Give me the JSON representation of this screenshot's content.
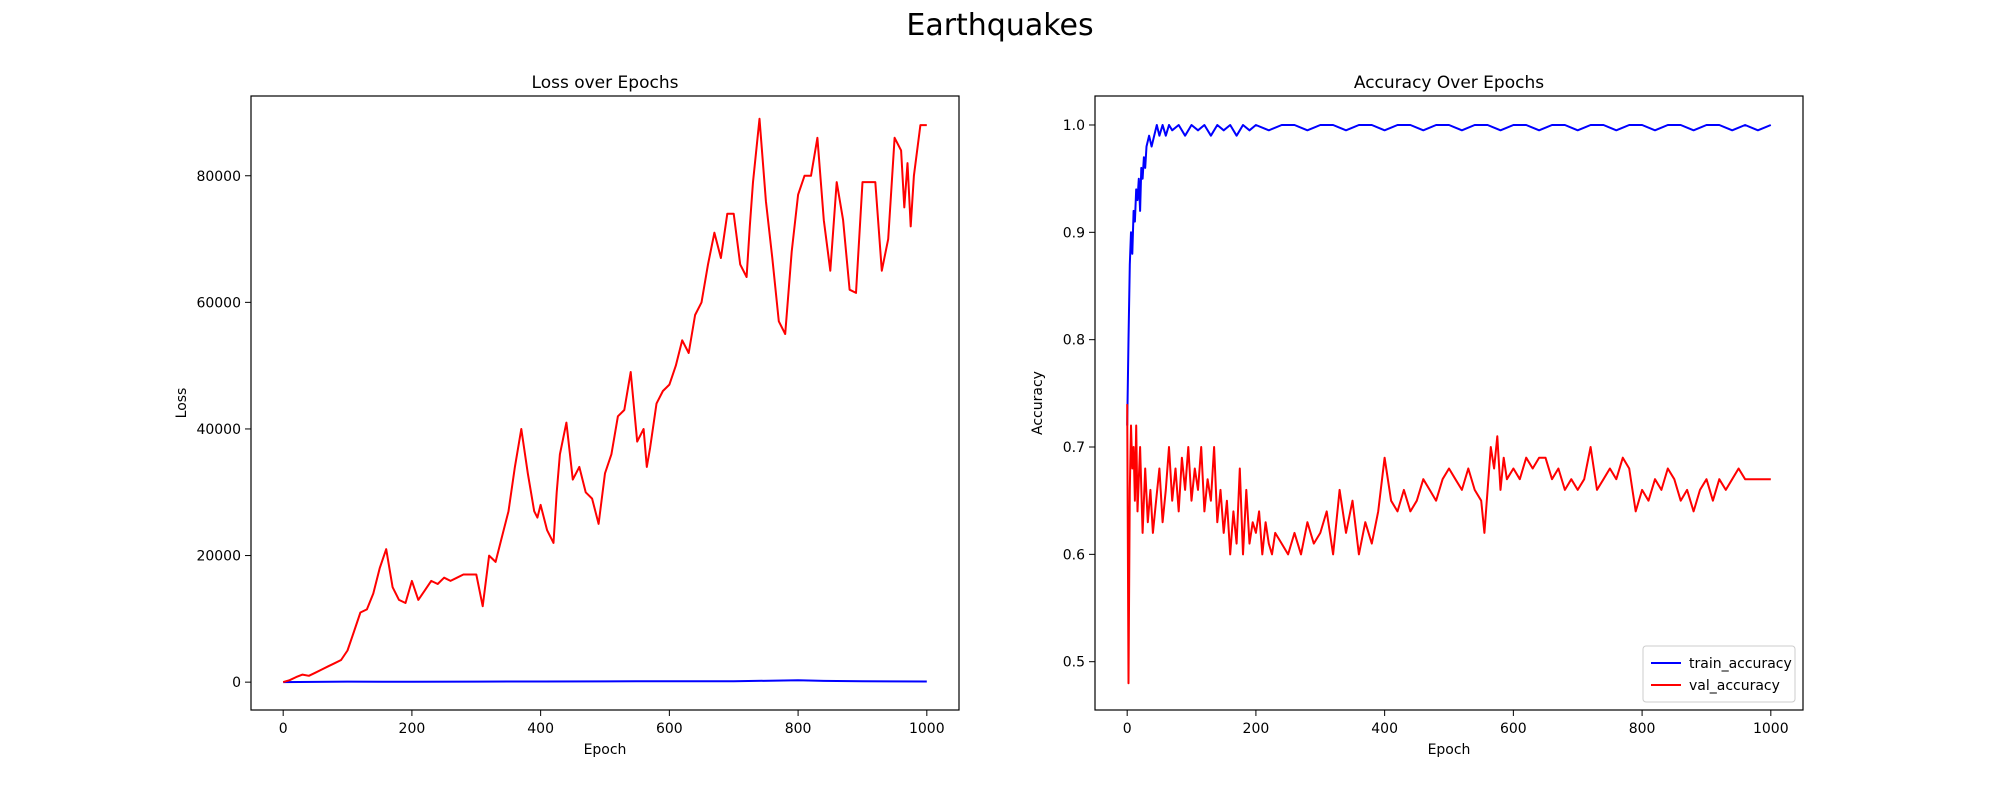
{
  "figure": {
    "suptitle": "Earthquakes"
  },
  "chart_data": [
    {
      "type": "line",
      "title": "Loss over Epochs",
      "xlabel": "Epoch",
      "ylabel": "Loss",
      "xlim": [
        -50,
        1050
      ],
      "ylim": [
        -4400,
        92600
      ],
      "xticks": [
        0,
        200,
        400,
        600,
        800,
        1000
      ],
      "yticks": [
        0,
        20000,
        40000,
        60000,
        80000
      ],
      "legend": null,
      "grid": false,
      "series": [
        {
          "color": "#0000ff",
          "x": [
            0,
            100,
            200,
            300,
            400,
            500,
            600,
            700,
            800,
            840,
            900,
            1000
          ],
          "y": [
            0,
            80,
            60,
            90,
            100,
            120,
            150,
            130,
            300,
            200,
            150,
            100
          ]
        },
        {
          "color": "#ff0000",
          "x": [
            0,
            10,
            20,
            30,
            40,
            50,
            60,
            70,
            80,
            90,
            100,
            110,
            120,
            130,
            140,
            150,
            160,
            170,
            180,
            190,
            200,
            210,
            220,
            230,
            240,
            250,
            260,
            270,
            280,
            290,
            300,
            310,
            320,
            330,
            340,
            350,
            360,
            370,
            380,
            390,
            395,
            400,
            410,
            420,
            425,
            430,
            440,
            450,
            460,
            470,
            480,
            490,
            500,
            510,
            520,
            530,
            540,
            550,
            560,
            565,
            570,
            580,
            590,
            600,
            610,
            620,
            630,
            640,
            650,
            660,
            670,
            680,
            690,
            700,
            710,
            720,
            725,
            730,
            740,
            750,
            760,
            770,
            780,
            790,
            800,
            810,
            820,
            830,
            840,
            850,
            860,
            870,
            880,
            890,
            900,
            910,
            920,
            930,
            940,
            950,
            960,
            965,
            970,
            975,
            980,
            990,
            1000
          ],
          "y": [
            0,
            300,
            800,
            1200,
            1000,
            1500,
            2000,
            2500,
            3000,
            3500,
            5000,
            8000,
            11000,
            11500,
            14000,
            18000,
            21000,
            15000,
            13000,
            12500,
            16000,
            13000,
            14500,
            16000,
            15500,
            16500,
            16000,
            16500,
            17000,
            17000,
            17000,
            12000,
            20000,
            19000,
            23000,
            27000,
            34000,
            40000,
            33000,
            27000,
            26000,
            28000,
            24000,
            22000,
            30000,
            36000,
            41000,
            32000,
            34000,
            30000,
            29000,
            25000,
            33000,
            36000,
            42000,
            43000,
            49000,
            38000,
            40000,
            34000,
            37000,
            44000,
            46000,
            47000,
            50000,
            54000,
            52000,
            58000,
            60000,
            66000,
            71000,
            67000,
            74000,
            74000,
            66000,
            64000,
            72000,
            79000,
            89000,
            76000,
            67000,
            57000,
            55000,
            68000,
            77000,
            80000,
            80000,
            86000,
            73000,
            65000,
            79000,
            73000,
            62000,
            61500,
            79000,
            79000,
            79000,
            65000,
            70000,
            86000,
            84000,
            75000,
            82000,
            72000,
            80000,
            88000,
            88000
          ]
        }
      ]
    },
    {
      "type": "line",
      "title": "Accuracy Over Epochs",
      "xlabel": "Epoch",
      "ylabel": "Accuracy",
      "xlim": [
        -50,
        1050
      ],
      "ylim": [
        0.455,
        1.027
      ],
      "xticks": [
        0,
        200,
        400,
        600,
        800,
        1000
      ],
      "yticks": [
        0.5,
        0.6,
        0.7,
        0.8,
        0.9,
        1.0
      ],
      "legend": "lower-right",
      "grid": false,
      "series": [
        {
          "name": "train_accuracy",
          "color": "#0000ff",
          "x": [
            0,
            2,
            4,
            6,
            8,
            10,
            12,
            14,
            16,
            18,
            20,
            22,
            24,
            26,
            28,
            30,
            34,
            38,
            42,
            46,
            50,
            55,
            60,
            65,
            70,
            80,
            90,
            100,
            110,
            120,
            130,
            140,
            150,
            160,
            170,
            180,
            190,
            200,
            220,
            240,
            260,
            280,
            300,
            320,
            340,
            360,
            380,
            400,
            420,
            440,
            460,
            480,
            500,
            520,
            540,
            560,
            580,
            600,
            620,
            640,
            660,
            680,
            700,
            720,
            740,
            760,
            780,
            800,
            820,
            840,
            860,
            880,
            900,
            920,
            940,
            960,
            980,
            1000
          ],
          "y": [
            0.72,
            0.8,
            0.87,
            0.9,
            0.88,
            0.92,
            0.91,
            0.94,
            0.93,
            0.95,
            0.92,
            0.96,
            0.95,
            0.97,
            0.96,
            0.98,
            0.99,
            0.98,
            0.99,
            1.0,
            0.99,
            1.0,
            0.99,
            1.0,
            0.995,
            1.0,
            0.99,
            1.0,
            0.995,
            1.0,
            0.99,
            1.0,
            0.995,
            1.0,
            0.99,
            1.0,
            0.995,
            1.0,
            0.995,
            1.0,
            1.0,
            0.995,
            1.0,
            1.0,
            0.995,
            1.0,
            1.0,
            0.995,
            1.0,
            1.0,
            0.995,
            1.0,
            1.0,
            0.995,
            1.0,
            1.0,
            0.995,
            1.0,
            1.0,
            0.995,
            1.0,
            1.0,
            0.995,
            1.0,
            1.0,
            0.995,
            1.0,
            1.0,
            0.995,
            1.0,
            1.0,
            0.995,
            1.0,
            1.0,
            0.995,
            1.0,
            0.995,
            1.0
          ]
        },
        {
          "name": "val_accuracy",
          "color": "#ff0000",
          "x": [
            0,
            2,
            4,
            6,
            8,
            10,
            12,
            14,
            16,
            18,
            20,
            24,
            28,
            32,
            36,
            40,
            45,
            50,
            55,
            60,
            65,
            70,
            75,
            80,
            85,
            90,
            95,
            100,
            105,
            110,
            115,
            120,
            125,
            130,
            135,
            140,
            145,
            150,
            155,
            160,
            165,
            170,
            175,
            180,
            185,
            190,
            195,
            200,
            205,
            210,
            215,
            220,
            225,
            230,
            240,
            250,
            260,
            270,
            280,
            290,
            300,
            310,
            320,
            330,
            340,
            350,
            360,
            370,
            380,
            390,
            400,
            410,
            420,
            430,
            440,
            450,
            460,
            470,
            480,
            490,
            500,
            510,
            520,
            530,
            540,
            550,
            555,
            560,
            565,
            570,
            575,
            580,
            585,
            590,
            600,
            610,
            620,
            630,
            640,
            650,
            660,
            670,
            680,
            690,
            700,
            710,
            720,
            725,
            730,
            740,
            750,
            760,
            770,
            780,
            790,
            800,
            810,
            820,
            830,
            840,
            850,
            860,
            870,
            880,
            890,
            900,
            910,
            920,
            930,
            940,
            950,
            960,
            970,
            980,
            990,
            1000
          ],
          "y": [
            0.74,
            0.48,
            0.66,
            0.72,
            0.68,
            0.7,
            0.65,
            0.72,
            0.64,
            0.67,
            0.7,
            0.62,
            0.68,
            0.63,
            0.66,
            0.62,
            0.65,
            0.68,
            0.63,
            0.66,
            0.7,
            0.65,
            0.68,
            0.64,
            0.69,
            0.66,
            0.7,
            0.65,
            0.68,
            0.66,
            0.7,
            0.64,
            0.67,
            0.65,
            0.7,
            0.63,
            0.66,
            0.62,
            0.65,
            0.6,
            0.64,
            0.61,
            0.68,
            0.6,
            0.66,
            0.61,
            0.63,
            0.62,
            0.64,
            0.6,
            0.63,
            0.61,
            0.6,
            0.62,
            0.61,
            0.6,
            0.62,
            0.6,
            0.63,
            0.61,
            0.62,
            0.64,
            0.6,
            0.66,
            0.62,
            0.65,
            0.6,
            0.63,
            0.61,
            0.64,
            0.69,
            0.65,
            0.64,
            0.66,
            0.64,
            0.65,
            0.67,
            0.66,
            0.65,
            0.67,
            0.68,
            0.67,
            0.66,
            0.68,
            0.66,
            0.65,
            0.62,
            0.66,
            0.7,
            0.68,
            0.71,
            0.66,
            0.69,
            0.67,
            0.68,
            0.67,
            0.69,
            0.68,
            0.69,
            0.69,
            0.67,
            0.68,
            0.66,
            0.67,
            0.66,
            0.67,
            0.7,
            0.68,
            0.66,
            0.67,
            0.68,
            0.67,
            0.69,
            0.68,
            0.64,
            0.66,
            0.65,
            0.67,
            0.66,
            0.68,
            0.67,
            0.65,
            0.66,
            0.64,
            0.66,
            0.67,
            0.65,
            0.67,
            0.66,
            0.67,
            0.68,
            0.67,
            0.67,
            0.67,
            0.67,
            0.67
          ]
        }
      ]
    }
  ]
}
